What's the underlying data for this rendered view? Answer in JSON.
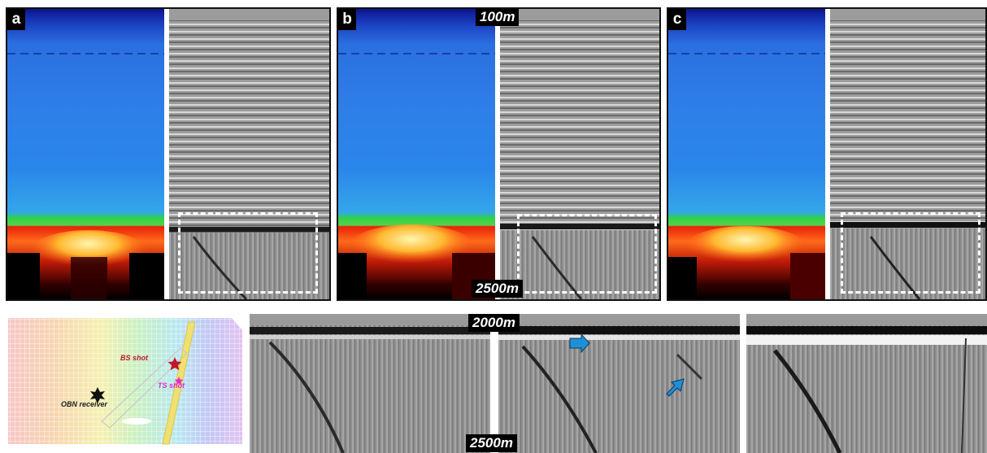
{
  "panels": [
    {
      "letter": "a"
    },
    {
      "letter": "b"
    },
    {
      "letter": "c"
    }
  ],
  "depth_labels": {
    "top_panels_top": "100m",
    "top_panels_bottom": "2500m",
    "zoom_top": "2000m",
    "zoom_bottom": "2500m"
  },
  "map": {
    "bs_shot": "BS shot",
    "ts_shot": "TS shot",
    "obn_receiver": "OBN receiver"
  },
  "colors": {
    "velocity_top": "#0a1a8a",
    "velocity_mid": "#2a73e0",
    "velocity_green": "#2fd14a",
    "velocity_red": "#e8220a",
    "velocity_yellow": "#ffe36a",
    "seismic_gray": "#9a9a9a",
    "arrow_blue": "#1e90d8",
    "bs_star": "#c0182a",
    "ts_star": "#e02ad0"
  }
}
